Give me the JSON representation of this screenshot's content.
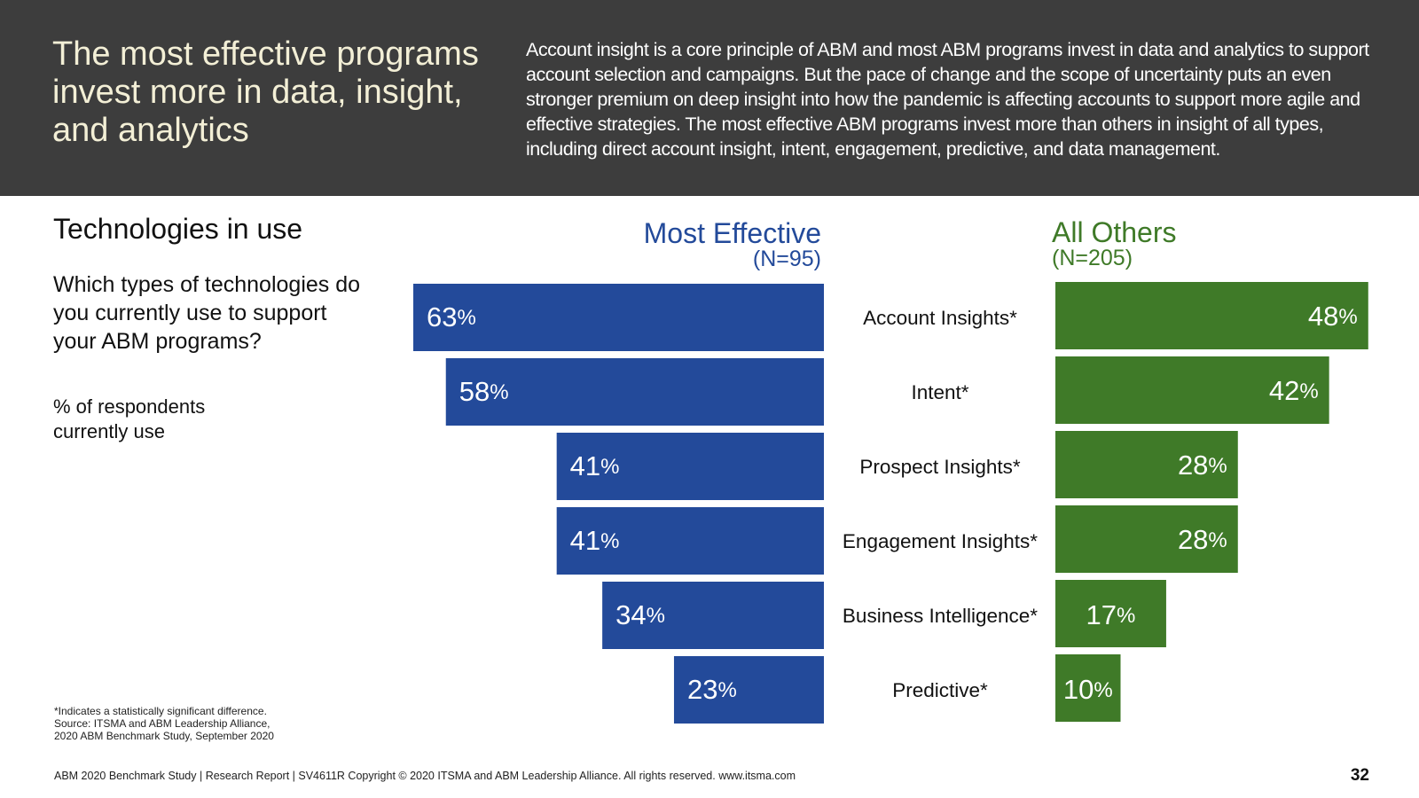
{
  "header": {
    "title": "The most effective programs invest more in data, insight, and analytics",
    "body": "Account insight is a core principle of ABM and most ABM programs invest in data and analytics to support account selection and campaigns. But the pace of change and the scope of uncertainty puts an even stronger premium on deep insight into how the pandemic is affecting accounts to support more agile and effective strategies. The most effective ABM programs invest more than others in insight of all types, including direct account insight, intent, engagement, predictive, and data management."
  },
  "left": {
    "section_title": "Technologies in use",
    "question": "Which types of technologies do you currently use to support your ABM programs?",
    "unit_note": "% of respondents currently use"
  },
  "chart_data": {
    "type": "bar",
    "orientation": "horizontal-butterfly",
    "categories": [
      "Account Insights*",
      "Intent*",
      "Prospect Insights*",
      "Engagement Insights*",
      "Business Intelligence*",
      "Predictive*"
    ],
    "series": [
      {
        "name": "Most Effective",
        "n_label": "(N=95)",
        "values": [
          63,
          58,
          41,
          41,
          34,
          23
        ],
        "color": "#234a9a"
      },
      {
        "name": "All Others",
        "n_label": "(N=205)",
        "values": [
          48,
          42,
          28,
          28,
          17,
          10
        ],
        "color": "#3f7a28"
      }
    ],
    "value_suffix": "%",
    "xlim": [
      0,
      63
    ]
  },
  "footnote": {
    "line1": "*Indicates a statistically significant difference.",
    "line2": "Source: ITSMA and ABM Leadership Alliance,",
    "line3": "2020 ABM Benchmark Study, September 2020"
  },
  "footer": {
    "text": "ABM 2020 Benchmark Study | Research Report | SV4611R Copyright © 2020 ITSMA and ABM Leadership Alliance. All rights reserved. www.itsma.com",
    "page_number": "32"
  }
}
